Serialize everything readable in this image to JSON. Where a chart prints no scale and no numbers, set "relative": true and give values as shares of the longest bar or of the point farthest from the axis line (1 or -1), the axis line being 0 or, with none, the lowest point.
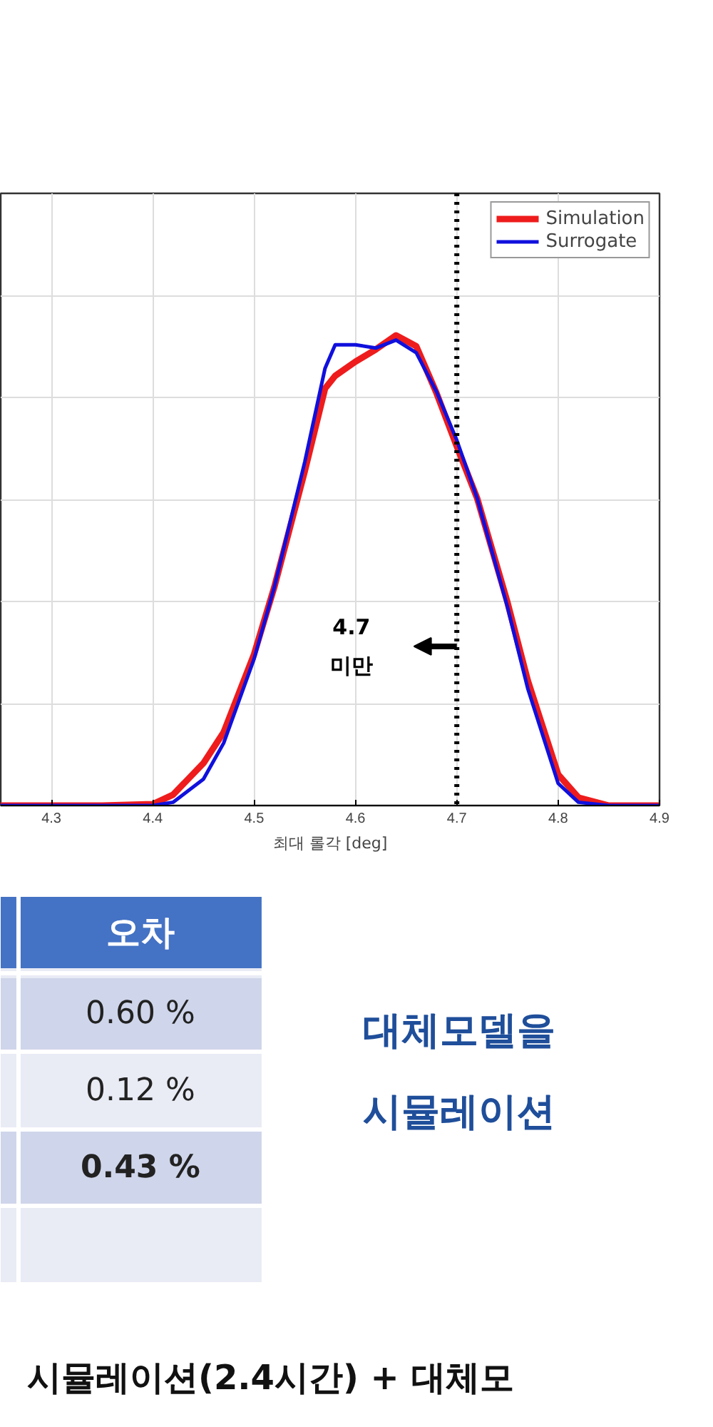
{
  "chart_data": {
    "type": "line",
    "relative": true,
    "xlabel": "최대 롤각 [deg]",
    "xlim": [
      4.25,
      4.9
    ],
    "xticks": [
      4.3,
      4.4,
      4.5,
      4.6,
      4.7,
      4.8,
      4.9
    ],
    "grid": true,
    "legend": "top right",
    "line_style": "solid",
    "marker": "none",
    "series": [
      {
        "name": "Simulation",
        "color": "#ee1c1c",
        "x": [
          4.25,
          4.3,
          4.35,
          4.4,
          4.42,
          4.45,
          4.47,
          4.5,
          4.52,
          4.55,
          4.57,
          4.58,
          4.6,
          4.62,
          4.64,
          4.66,
          4.68,
          4.7,
          4.72,
          4.75,
          4.77,
          4.8,
          4.82,
          4.85,
          4.9
        ],
        "values": [
          0,
          0,
          0,
          0.003,
          0.023,
          0.09,
          0.156,
          0.322,
          0.465,
          0.711,
          0.887,
          0.914,
          0.944,
          0.97,
          1,
          0.977,
          0.877,
          0.764,
          0.654,
          0.432,
          0.266,
          0.066,
          0.017,
          0,
          0
        ]
      },
      {
        "name": "Surrogate",
        "color": "#1010dd",
        "x": [
          4.25,
          4.3,
          4.35,
          4.4,
          4.42,
          4.45,
          4.47,
          4.5,
          4.52,
          4.55,
          4.57,
          4.58,
          4.6,
          4.62,
          4.64,
          4.66,
          4.68,
          4.7,
          4.72,
          4.75,
          4.77,
          4.8,
          4.82,
          4.85,
          4.9
        ],
        "values": [
          0,
          0,
          0,
          0,
          0.007,
          0.056,
          0.133,
          0.312,
          0.465,
          0.731,
          0.93,
          0.98,
          0.98,
          0.973,
          0.99,
          0.963,
          0.88,
          0.777,
          0.654,
          0.422,
          0.249,
          0.047,
          0.007,
          0,
          0
        ]
      }
    ],
    "ref_lines": [
      {
        "axis": "x",
        "value": 4.7,
        "color": "#000000",
        "line_style": "dotted"
      }
    ],
    "annotations": [
      "4.7\n미만",
      "오차",
      "0.60 %",
      "0.12 %",
      "0.43 %",
      "대체모델을",
      "시뮬레이션",
      "시뮬레이션(2.4시간) + 대체모"
    ]
  }
}
